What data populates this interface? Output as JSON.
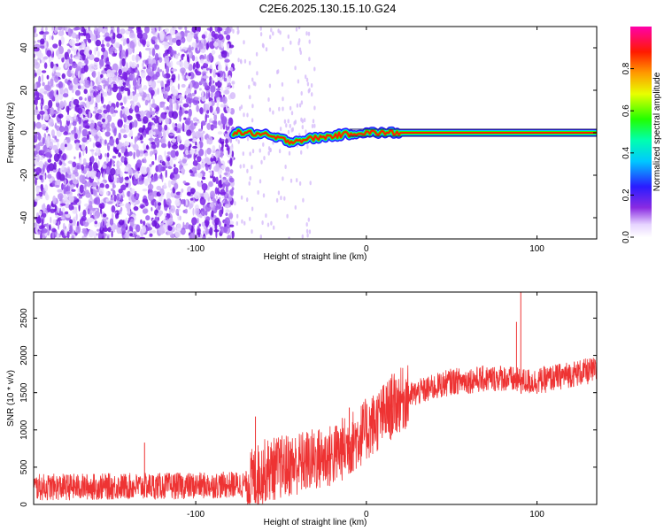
{
  "title": "C2E6.2025.130.15.10.G24",
  "chart_data": [
    {
      "type": "heatmap",
      "xlabel": "Height of straight line (km)",
      "ylabel": "Frequency (Hz)",
      "xlim": [
        -195,
        135
      ],
      "ylim": [
        -50,
        50
      ],
      "xticks": [
        -100,
        0,
        100
      ],
      "yticks": [
        -40,
        -20,
        0,
        20,
        40
      ],
      "colorbar": {
        "label": "Normalized spectral amplitude",
        "range": [
          0,
          1
        ],
        "ticks": [
          "0.0",
          "0.2",
          "0.4",
          "0.6",
          "0.8"
        ],
        "colormap": "rainbow (white-violet-blue-cyan-green-yellow-red-magenta)"
      },
      "signal_track": {
        "description_points_x": [
          -78,
          -70,
          -60,
          -50,
          -45,
          -35,
          -25,
          -15,
          -5,
          0,
          10,
          20,
          50,
          80,
          87,
          90,
          135
        ],
        "frequency_hz": [
          0,
          0,
          -1,
          -3,
          -4,
          -3,
          -2,
          -1,
          0,
          0,
          0,
          0,
          0,
          0,
          0,
          0,
          0
        ]
      },
      "noise_region_x": [
        -195,
        -78
      ]
    },
    {
      "type": "line",
      "xlabel": "Height of straight line (km)",
      "ylabel": "SNR (10 * v/v)",
      "xlim": [
        -195,
        135
      ],
      "ylim": [
        0,
        2850
      ],
      "xticks": [
        -100,
        0,
        100
      ],
      "yticks": [
        0,
        500,
        1000,
        1500,
        2000,
        2500
      ],
      "color": "#ee3333",
      "trend": {
        "x": [
          -195,
          -150,
          -100,
          -70,
          -60,
          -40,
          -20,
          -10,
          0,
          10,
          20,
          30,
          50,
          80,
          90,
          100,
          120,
          135
        ],
        "snr": [
          230,
          240,
          250,
          270,
          450,
          550,
          650,
          800,
          1000,
          1200,
          1400,
          1500,
          1650,
          1700,
          1650,
          1650,
          1750,
          1800
        ]
      },
      "noise_amplitude": 180,
      "spikes": [
        {
          "x": -130,
          "snr": 830
        },
        {
          "x": -65,
          "snr": 1180
        },
        {
          "x": -10,
          "snr": 1300
        },
        {
          "x": 15,
          "snr": 1750
        },
        {
          "x": 88,
          "snr": 2450
        },
        {
          "x": 90.5,
          "snr": 2850
        }
      ]
    }
  ]
}
